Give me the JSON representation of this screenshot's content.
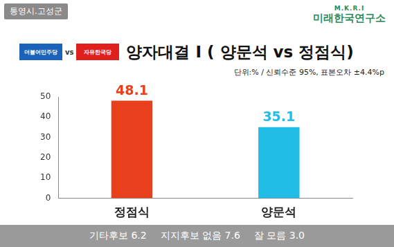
{
  "header": {
    "region_tag": "통영시.고성군",
    "org_logo": "M.K.R.I",
    "org_name": "미래한국연구소",
    "party_logos": [
      "더불어민주당",
      "vs",
      "자유한국당"
    ]
  },
  "chart_data": {
    "type": "bar",
    "title": "양자대결 I ( 양문석 vs 정점식)",
    "subtitle": "단위:% / 신뢰수준 95%, 표본오차 ±4.4%p",
    "categories": [
      "정점식",
      "양문석"
    ],
    "values": [
      48.1,
      35.1
    ],
    "colors": [
      "#e8401c",
      "#22bde6"
    ],
    "ylim": [
      0,
      50
    ],
    "yticks": [
      0,
      10,
      20,
      30,
      40,
      50
    ],
    "grid": false,
    "data_labels": true
  },
  "footer": [
    "기타후보 6.2",
    "지지후보 없음 7.6",
    "잘 모름 3.0"
  ]
}
